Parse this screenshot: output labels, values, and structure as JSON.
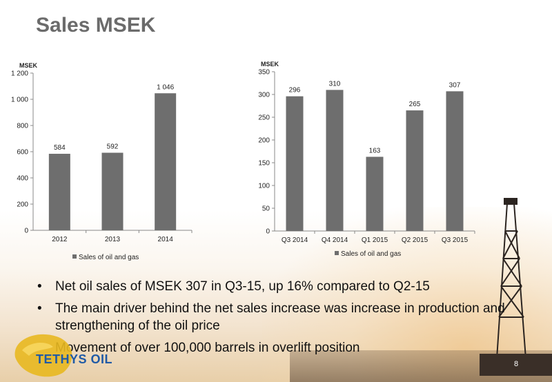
{
  "slide": {
    "title": "Sales MSEK",
    "page_number": "8",
    "bullets": [
      "Net oil sales of MSEK 307 in Q3-15, up 16% compared to Q2-15",
      "The main driver behind the net sales increase was increase in production and strengthening of the oil price",
      "Movement of over 100,000 barrels in overlift position"
    ],
    "logo_text": "TETHYS OIL"
  },
  "colors": {
    "bar": "#6e6e6e",
    "axis": "#888888",
    "title": "#6b6b6b",
    "logo": "#1f5aa6",
    "logo_gold": "#e8b820"
  },
  "chart_data": [
    {
      "type": "bar",
      "unit_label": "MSEK",
      "categories": [
        "2012",
        "2013",
        "2014"
      ],
      "series": [
        {
          "name": "Sales of oil and gas",
          "values": [
            584,
            592,
            1046
          ]
        }
      ],
      "data_labels": [
        "584",
        "592",
        "1 046"
      ],
      "ylim": [
        0,
        1200
      ],
      "yticks": [
        0,
        200,
        400,
        600,
        800,
        1000,
        1200
      ],
      "ytick_labels": [
        "0",
        "200",
        "400",
        "600",
        "800",
        "1 000",
        "1 200"
      ],
      "legend": "bottom",
      "grid": false
    },
    {
      "type": "bar",
      "unit_label": "MSEK",
      "categories": [
        "Q3 2014",
        "Q4 2014",
        "Q1 2015",
        "Q2 2015",
        "Q3 2015"
      ],
      "series": [
        {
          "name": "Sales of oil and gas",
          "values": [
            296,
            310,
            163,
            265,
            307
          ]
        }
      ],
      "data_labels": [
        "296",
        "310",
        "163",
        "265",
        "307"
      ],
      "ylim": [
        0,
        350
      ],
      "yticks": [
        0,
        50,
        100,
        150,
        200,
        250,
        300,
        350
      ],
      "ytick_labels": [
        "0",
        "50",
        "100",
        "150",
        "200",
        "250",
        "300",
        "350"
      ],
      "legend": "bottom",
      "grid": false
    }
  ]
}
